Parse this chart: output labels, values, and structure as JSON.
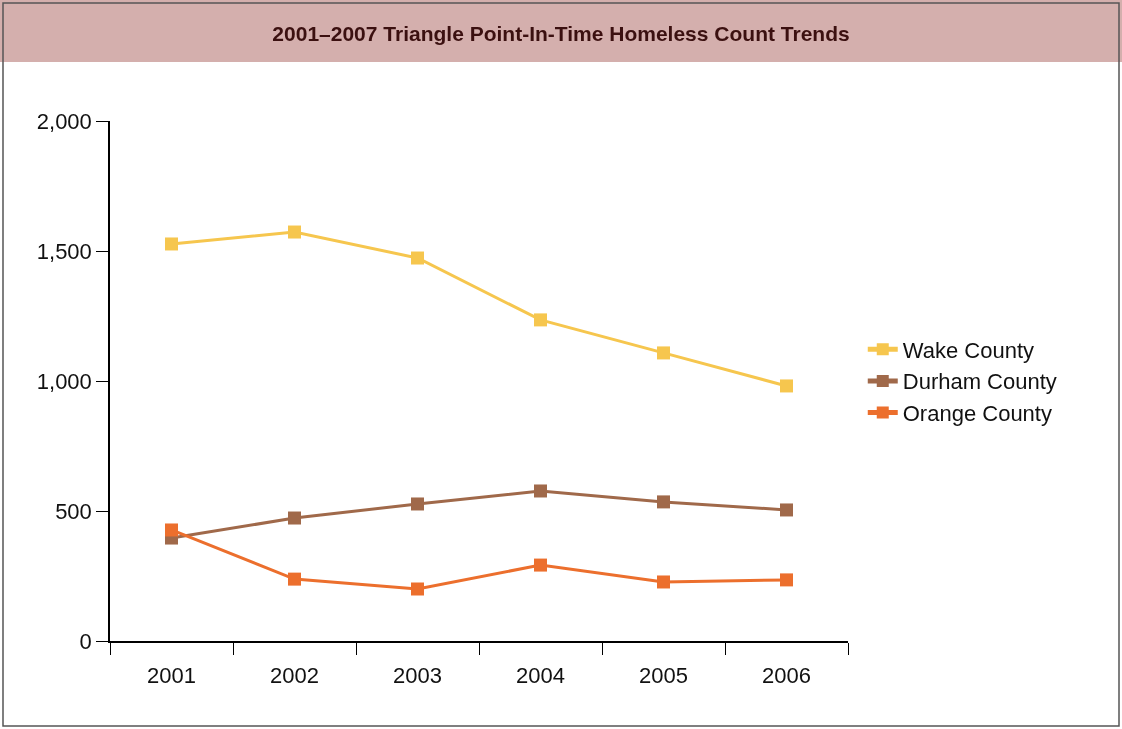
{
  "chart_data": {
    "type": "line",
    "title": "2001–2007 Triangle Point-In-Time Homeless Count Trends",
    "categories": [
      "2001",
      "2002",
      "2003",
      "2004",
      "2005",
      "2006"
    ],
    "series": [
      {
        "name": "Wake County",
        "color": "#f6c64e",
        "values": [
          1527,
          1573,
          1473,
          1235,
          1108,
          981
        ]
      },
      {
        "name": "Durham County",
        "color": "#a0694a",
        "values": [
          396,
          473,
          527,
          577,
          535,
          504
        ]
      },
      {
        "name": "Orange County",
        "color": "#ec6f2d",
        "values": [
          427,
          238,
          200,
          292,
          227,
          235
        ]
      }
    ],
    "ylim": [
      0,
      2000
    ],
    "yticks": [
      0,
      500,
      {
        "value": 1000,
        "label": "1,000"
      },
      {
        "value": 1500,
        "label": "1,500"
      },
      {
        "value": 2000,
        "label": "2,000"
      }
    ],
    "legend": "right",
    "marker": "square",
    "line_style": "solid"
  }
}
